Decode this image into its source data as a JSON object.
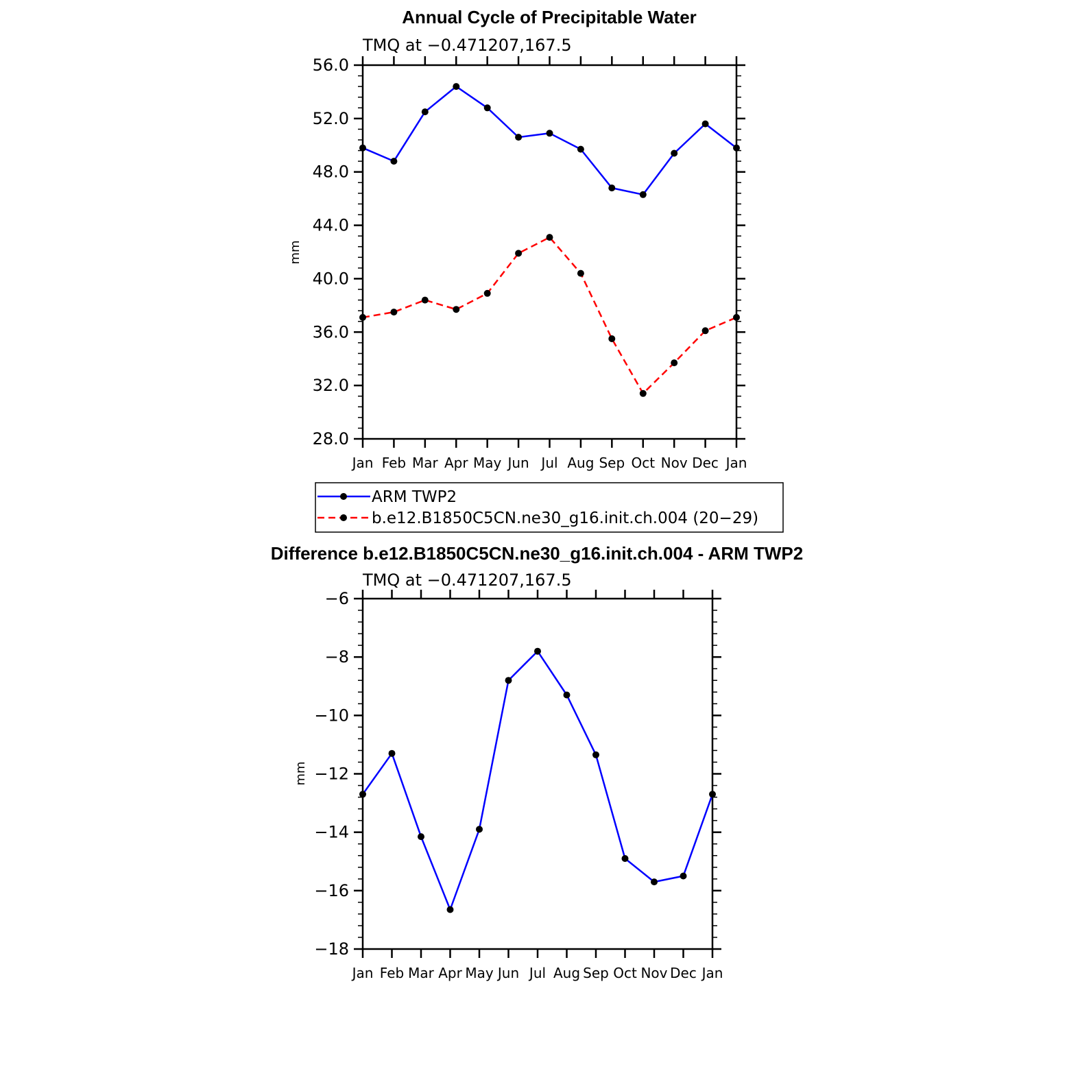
{
  "chart_data": [
    {
      "type": "line",
      "title": "Annual Cycle of Precipitable Water",
      "subtitle": "TMQ at −0.471207,167.5",
      "ylabel": "mm",
      "xlabel": "",
      "ylim": [
        28,
        56
      ],
      "yticks": [
        "28.0",
        "32.0",
        "36.0",
        "40.0",
        "44.0",
        "48.0",
        "52.0",
        "56.0"
      ],
      "categories": [
        "Jan",
        "Feb",
        "Mar",
        "Apr",
        "May",
        "Jun",
        "Jul",
        "Aug",
        "Sep",
        "Oct",
        "Nov",
        "Dec",
        "Jan"
      ],
      "series": [
        {
          "name": "ARM TWP2",
          "color": "#0000ff",
          "dash": "solid",
          "values": [
            49.8,
            48.8,
            52.5,
            54.4,
            52.8,
            50.6,
            50.9,
            49.7,
            46.8,
            46.3,
            49.4,
            51.6,
            49.8
          ]
        },
        {
          "name": "b.e12.B1850C5CN.ne30_g16.init.ch.004 (20−29)",
          "color": "#ff0000",
          "dash": "dashed",
          "values": [
            37.1,
            37.5,
            38.4,
            37.7,
            38.9,
            41.9,
            43.1,
            40.4,
            35.5,
            31.4,
            33.7,
            36.1,
            37.1
          ]
        }
      ],
      "legend_position": "below"
    },
    {
      "type": "line",
      "title": "Difference b.e12.B1850C5CN.ne30_g16.init.ch.004 - ARM TWP2",
      "subtitle": "TMQ at −0.471207,167.5",
      "ylabel": "mm",
      "xlabel": "",
      "ylim": [
        -18,
        -6
      ],
      "yticks": [
        "−18",
        "−16",
        "−14",
        "−12",
        "−10",
        "−8",
        "−6"
      ],
      "categories": [
        "Jan",
        "Feb",
        "Mar",
        "Apr",
        "May",
        "Jun",
        "Jul",
        "Aug",
        "Sep",
        "Oct",
        "Nov",
        "Dec",
        "Jan"
      ],
      "series": [
        {
          "name": "Difference",
          "color": "#0000ff",
          "dash": "solid",
          "values": [
            -12.7,
            -11.3,
            -14.15,
            -16.65,
            -13.9,
            -8.8,
            -7.8,
            -9.3,
            -11.35,
            -14.9,
            -15.7,
            -15.5,
            -12.7
          ]
        }
      ]
    }
  ]
}
